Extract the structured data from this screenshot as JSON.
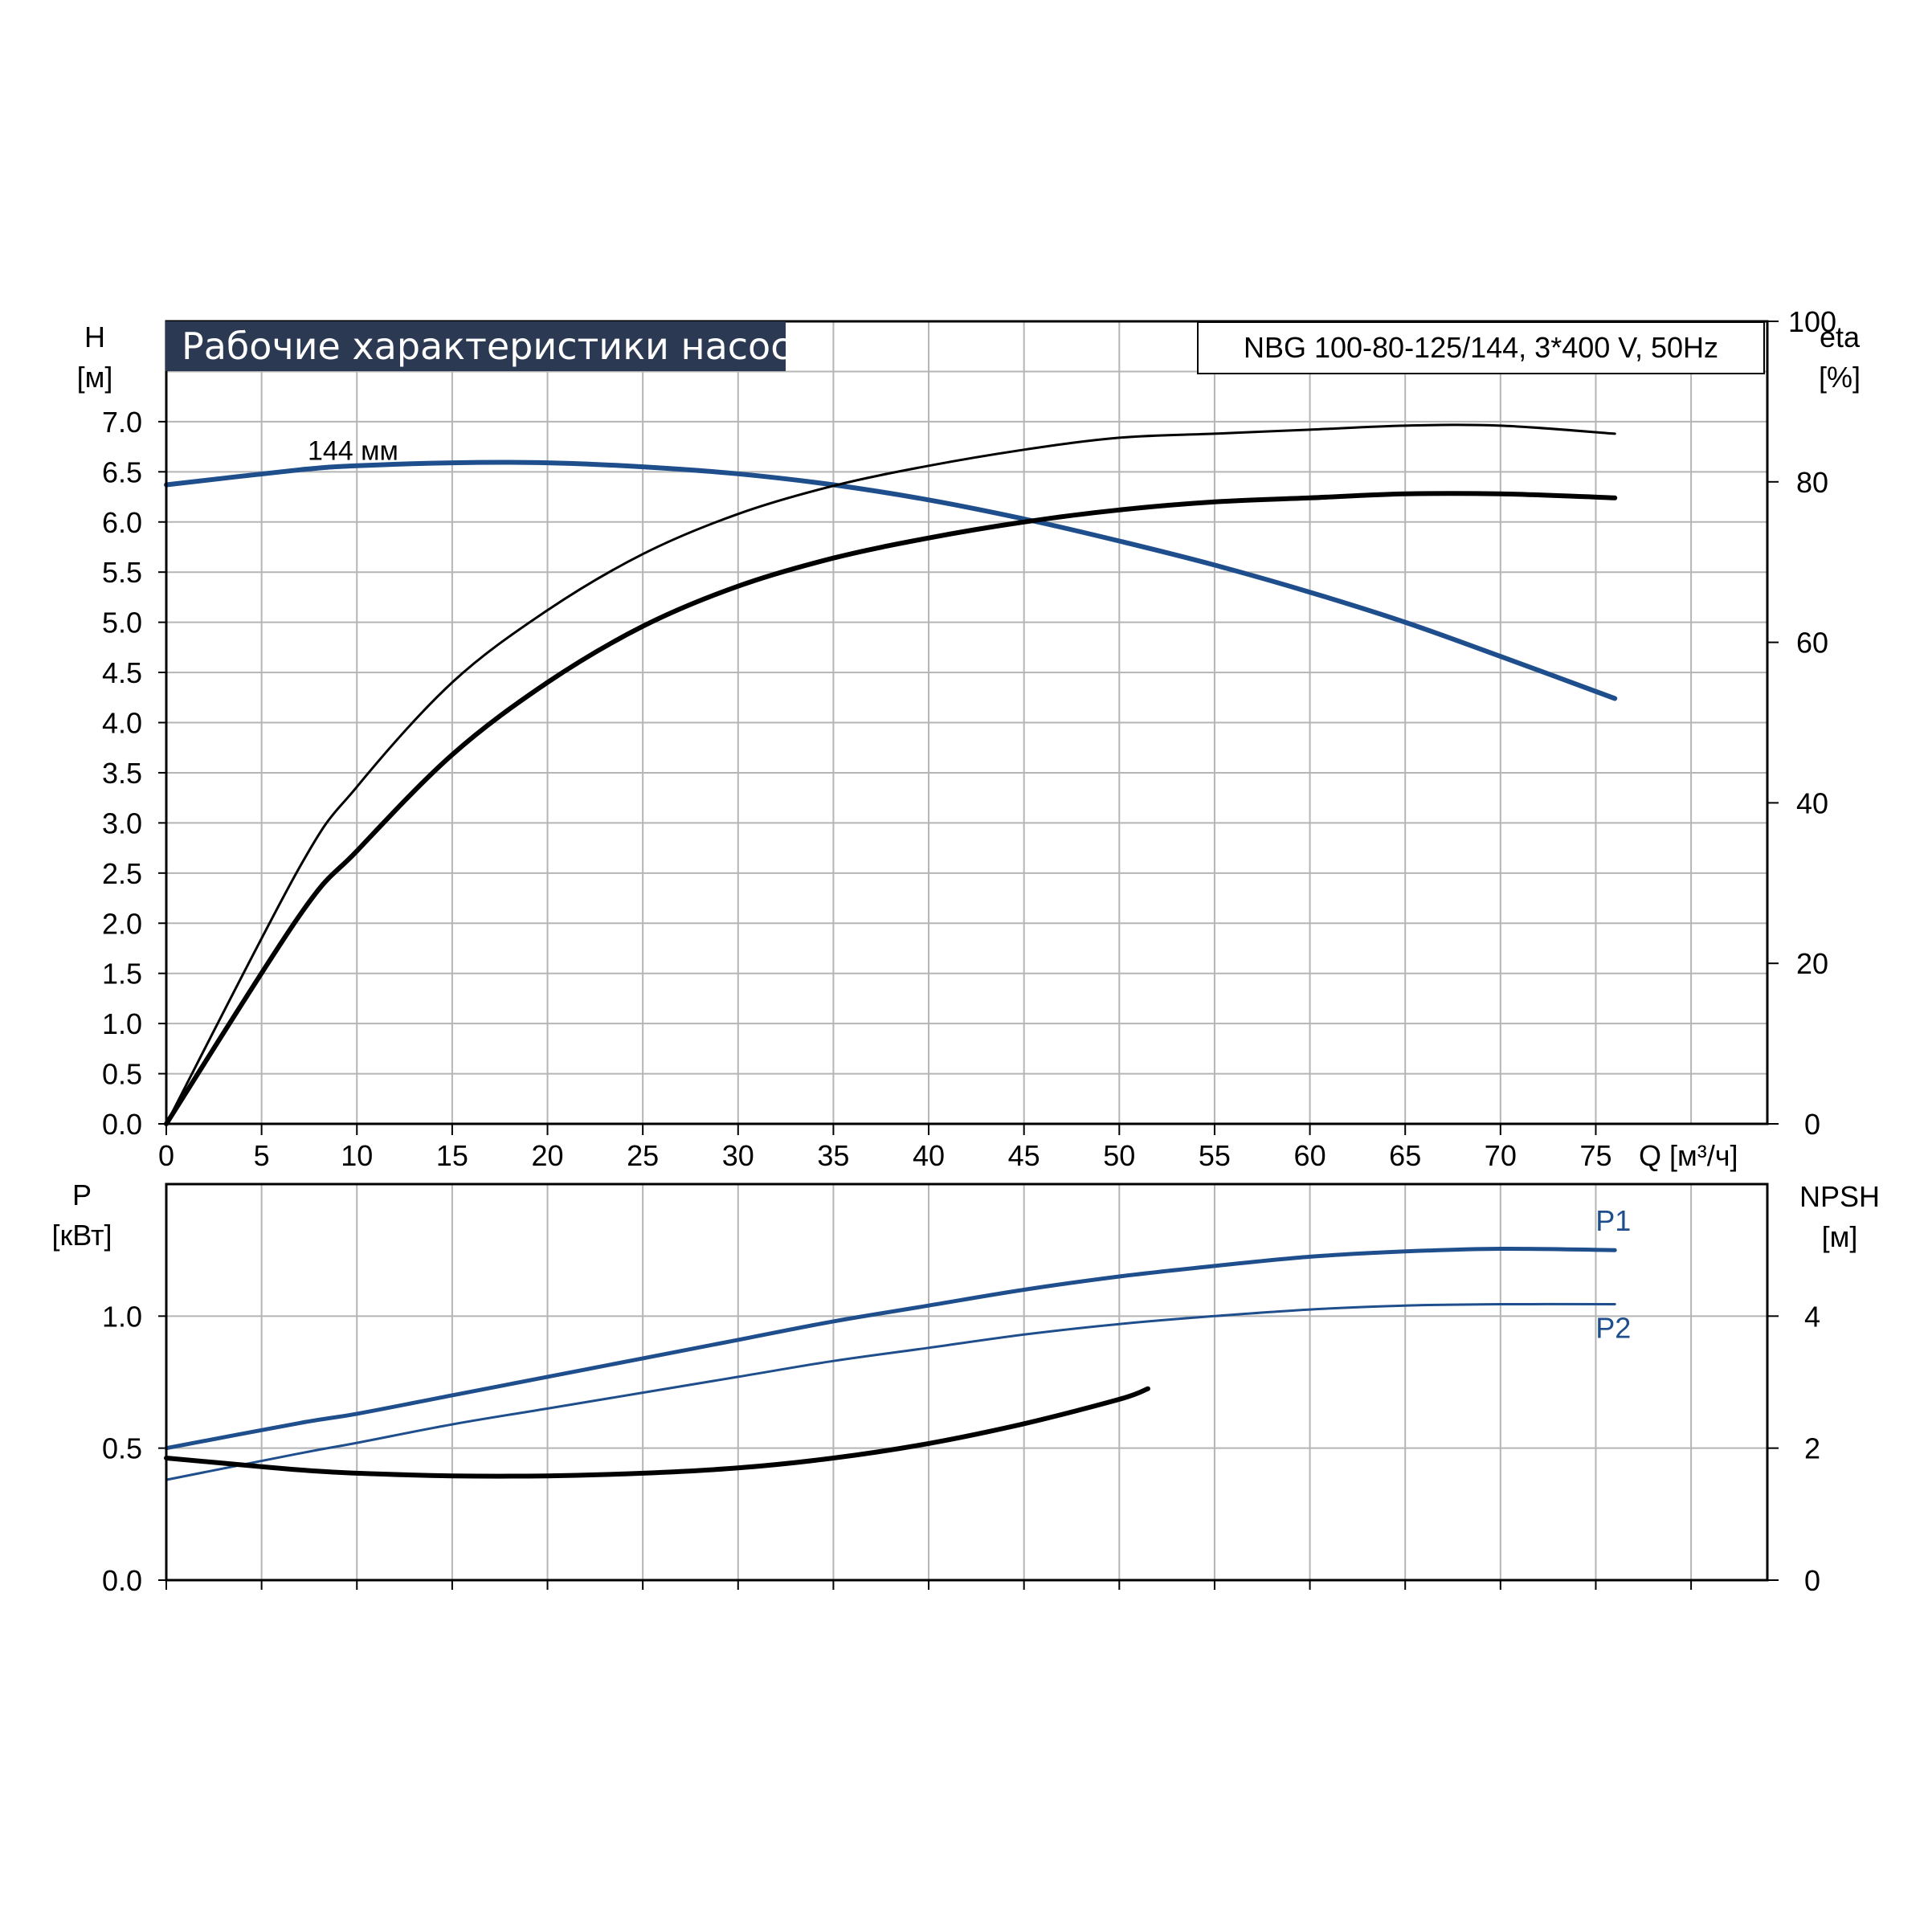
{
  "chart_data": [
    {
      "type": "line",
      "title": "Рабочие характеристики насоса",
      "model": "NBG 100-80-125/144, 3*400 V, 50Hz",
      "xlabel": "Q [м³/ч]",
      "xlim": [
        0,
        84
      ],
      "xticks": [
        "0",
        "5",
        "10",
        "15",
        "20",
        "25",
        "30",
        "35",
        "40",
        "45",
        "50",
        "55",
        "60",
        "65",
        "70",
        "75"
      ],
      "ylabel_left": [
        "H",
        "[м]"
      ],
      "ylim_left": [
        0,
        8
      ],
      "yticks_left": [
        "0.0",
        "0.5",
        "1.0",
        "1.5",
        "2.0",
        "2.5",
        "3.0",
        "3.5",
        "4.0",
        "4.5",
        "5.0",
        "5.5",
        "6.0",
        "6.5",
        "7.0"
      ],
      "ylabel_right": [
        "eta",
        "[%]"
      ],
      "ylim_right": [
        0,
        100
      ],
      "yticks_right": [
        "0",
        "20",
        "40",
        "60",
        "80",
        "100"
      ],
      "grid": true,
      "annotations": [
        {
          "text": "144 мм",
          "x": 7.5,
          "y": 6.65
        }
      ],
      "series": [
        {
          "axis": "left",
          "color": "#1f4e8c",
          "width": 6,
          "x": [
            0,
            7,
            10,
            15,
            20,
            25,
            30,
            35,
            40,
            45,
            50,
            55,
            60,
            65,
            70,
            76
          ],
          "y": [
            6.37,
            6.52,
            6.56,
            6.59,
            6.59,
            6.55,
            6.48,
            6.37,
            6.22,
            6.03,
            5.81,
            5.57,
            5.3,
            5.0,
            4.66,
            4.24
          ]
        },
        {
          "axis": "right",
          "color": "#000000",
          "width": 3,
          "x": [
            0,
            7,
            10,
            15,
            20,
            25,
            30,
            35,
            40,
            45,
            50,
            55,
            60,
            65,
            70,
            76
          ],
          "y": [
            0,
            32,
            42,
            55,
            64,
            71,
            76,
            79.5,
            82,
            84,
            85.5,
            86,
            86.5,
            87,
            87,
            86
          ]
        },
        {
          "axis": "right",
          "color": "#000000",
          "width": 6,
          "x": [
            0,
            7,
            10,
            15,
            20,
            25,
            30,
            35,
            40,
            45,
            50,
            55,
            60,
            65,
            70,
            76
          ],
          "y": [
            0,
            26,
            34,
            46,
            55,
            62,
            67,
            70.5,
            73,
            75,
            76.5,
            77.5,
            78,
            78.5,
            78.5,
            78
          ]
        }
      ]
    },
    {
      "type": "line",
      "xlim": [
        0,
        84
      ],
      "ylabel_left": [
        "P",
        "[кВт]"
      ],
      "ylim_left": [
        0,
        1.5
      ],
      "yticks_left": [
        "0.0",
        "0.5",
        "1.0"
      ],
      "ylabel_right": [
        "NPSH",
        "[м]"
      ],
      "ylim_right": [
        0,
        6
      ],
      "yticks_right": [
        "0",
        "2",
        "4"
      ],
      "grid": true,
      "series": [
        {
          "name": "P1",
          "axis": "left",
          "color": "#1f4e8c",
          "width": 5,
          "x": [
            0,
            7,
            10,
            15,
            20,
            25,
            30,
            35,
            40,
            45,
            50,
            55,
            60,
            65,
            70,
            76
          ],
          "y": [
            0.5,
            0.595,
            0.63,
            0.7,
            0.77,
            0.84,
            0.91,
            0.98,
            1.04,
            1.1,
            1.15,
            1.19,
            1.225,
            1.245,
            1.255,
            1.25
          ]
        },
        {
          "name": "P2",
          "axis": "left",
          "color": "#1f4e8c",
          "width": 3,
          "x": [
            0,
            7,
            10,
            15,
            20,
            25,
            30,
            35,
            40,
            45,
            50,
            55,
            60,
            65,
            70,
            76
          ],
          "y": [
            0.38,
            0.48,
            0.52,
            0.59,
            0.65,
            0.71,
            0.77,
            0.83,
            0.88,
            0.93,
            0.97,
            1.0,
            1.025,
            1.04,
            1.045,
            1.045
          ]
        },
        {
          "axis": "right",
          "color": "#000000",
          "width": 6,
          "x": [
            0,
            5,
            7,
            10,
            15,
            20,
            25,
            30,
            35,
            40,
            45,
            50,
            51.5
          ],
          "y": [
            1.85,
            1.72,
            1.67,
            1.62,
            1.58,
            1.58,
            1.62,
            1.7,
            1.85,
            2.07,
            2.37,
            2.74,
            2.9
          ]
        }
      ]
    }
  ]
}
